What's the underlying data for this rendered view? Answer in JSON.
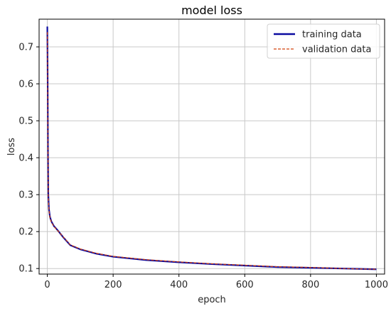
{
  "chart_data": {
    "type": "line",
    "title": "model loss",
    "xlabel": "epoch",
    "ylabel": "loss",
    "xlim": [
      -25,
      1025
    ],
    "ylim": [
      0.085,
      0.775
    ],
    "xticks": [
      0,
      200,
      400,
      600,
      800,
      1000
    ],
    "yticks": [
      0.1,
      0.2,
      0.3,
      0.4,
      0.5,
      0.6,
      0.7
    ],
    "grid": true,
    "legend": {
      "placement": "top-right"
    },
    "series": [
      {
        "name": "training data",
        "style": "solid",
        "color": "#0a0aa0",
        "x": [
          0,
          1,
          2,
          3,
          5,
          8,
          12,
          20,
          30,
          50,
          70,
          100,
          150,
          200,
          300,
          400,
          500,
          600,
          700,
          800,
          900,
          1000
        ],
        "y": [
          0.755,
          0.62,
          0.42,
          0.3,
          0.26,
          0.24,
          0.228,
          0.215,
          0.205,
          0.183,
          0.163,
          0.152,
          0.14,
          0.132,
          0.123,
          0.117,
          0.112,
          0.108,
          0.104,
          0.102,
          0.1,
          0.098
        ]
      },
      {
        "name": "validation data",
        "style": "dashed",
        "color": "#d2410a",
        "x": [
          0,
          1,
          2,
          3,
          5,
          8,
          12,
          20,
          30,
          50,
          70,
          100,
          150,
          200,
          300,
          400,
          500,
          600,
          700,
          800,
          900,
          1000
        ],
        "y": [
          0.74,
          0.6,
          0.41,
          0.295,
          0.258,
          0.238,
          0.226,
          0.214,
          0.204,
          0.184,
          0.164,
          0.153,
          0.141,
          0.133,
          0.124,
          0.118,
          0.113,
          0.109,
          0.105,
          0.103,
          0.1,
          0.098
        ]
      }
    ]
  }
}
